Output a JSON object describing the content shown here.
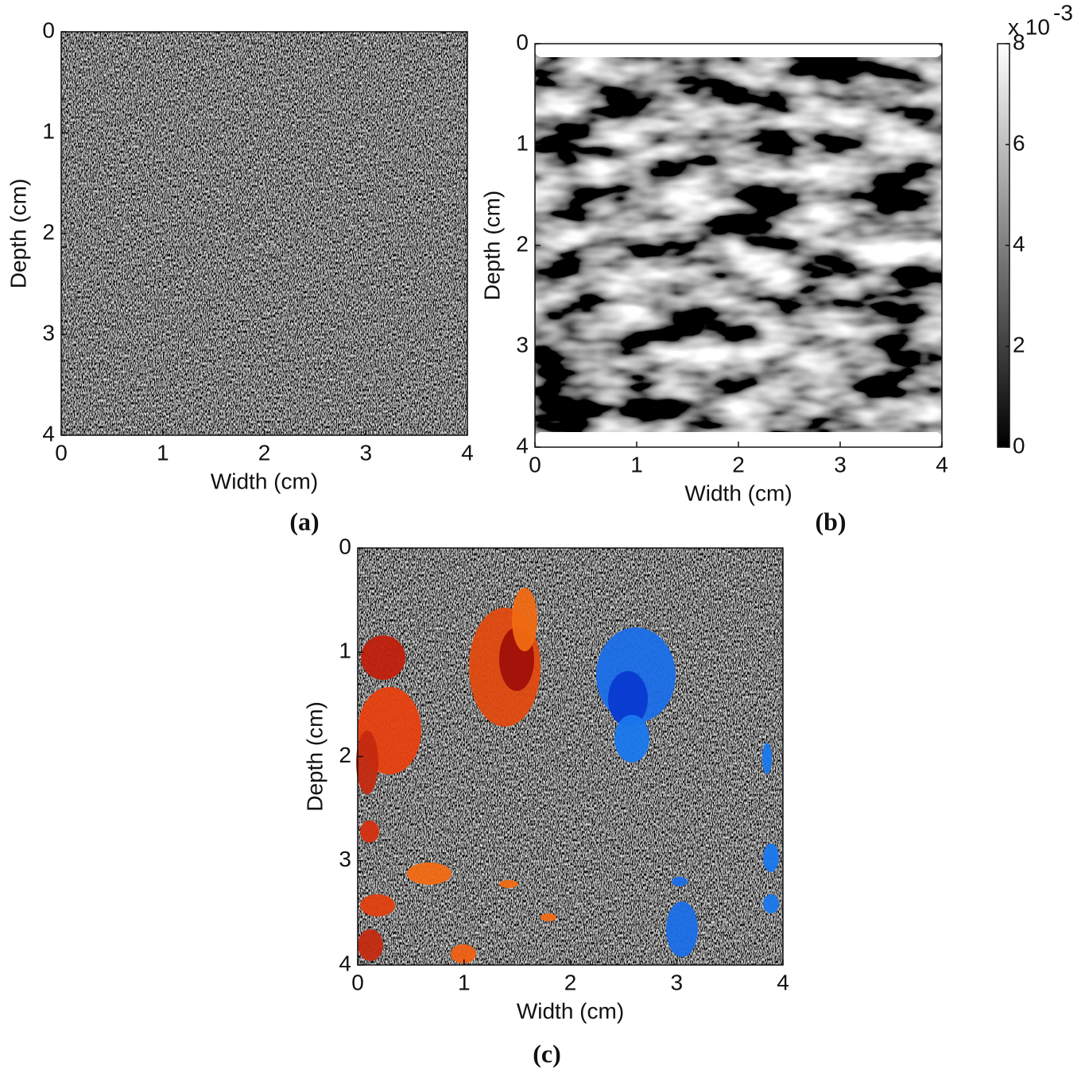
{
  "chart_data": [
    {
      "type": "image",
      "xlabel": "Width (cm)",
      "ylabel": "Depth (cm)",
      "caption": "(a)",
      "xlim": [
        0,
        4
      ],
      "ylim": [
        0,
        4
      ],
      "y_reversed": true,
      "xticks": [
        0,
        1,
        2,
        3,
        4
      ],
      "yticks": [
        0,
        1,
        2,
        3,
        4
      ]
    },
    {
      "type": "image",
      "xlabel": "Width (cm)",
      "ylabel": "Depth (cm)",
      "caption": "(b)",
      "xlim": [
        0,
        4
      ],
      "ylim": [
        0,
        4
      ],
      "y_reversed": true,
      "xticks": [
        0,
        1,
        2,
        3,
        4
      ],
      "yticks": [
        0,
        1,
        2,
        3,
        4
      ],
      "colorbar": {
        "lim": [
          0,
          8
        ],
        "ticks": [
          0,
          2,
          4,
          6,
          8
        ],
        "scale_label": "x 10",
        "scale_exponent": -3
      }
    },
    {
      "type": "image",
      "xlabel": "Width (cm)",
      "ylabel": "Depth (cm)",
      "caption": "(c)",
      "xlim": [
        0,
        4
      ],
      "ylim": [
        0,
        4
      ],
      "y_reversed": true,
      "xticks": [
        0,
        1,
        2,
        3,
        4
      ],
      "yticks": [
        0,
        1,
        2,
        3,
        4
      ]
    }
  ]
}
